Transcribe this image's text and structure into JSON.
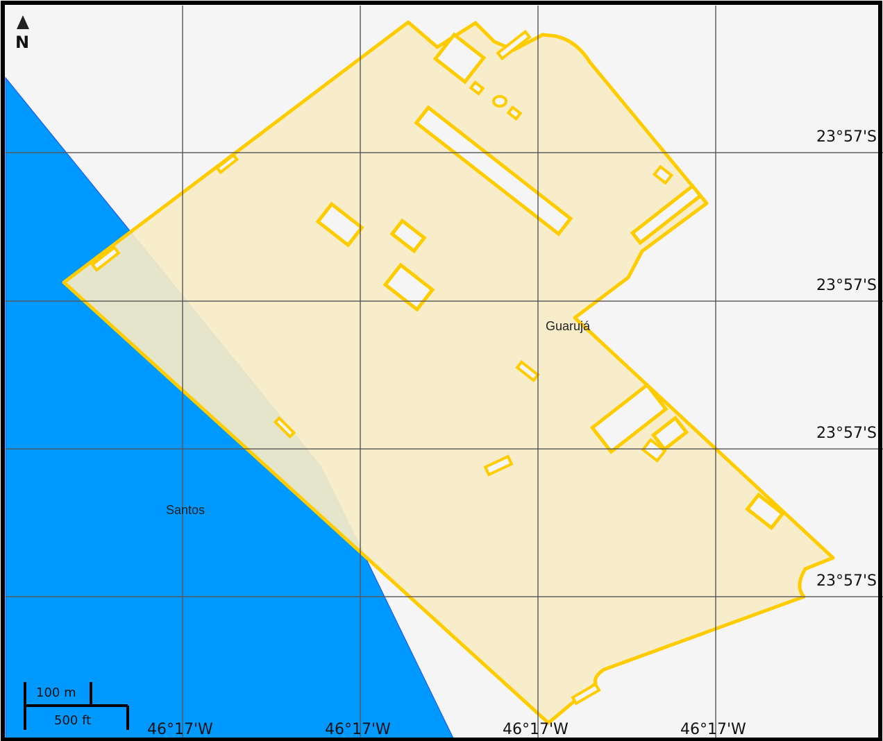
{
  "map": {
    "colors": {
      "land": "#f5f5f5",
      "water": "#0099ff",
      "area_fill": "#f7ecc6",
      "area_stroke": "#ffcc00",
      "grid": "#555555",
      "frame": "#000000"
    },
    "north_arrow": {
      "label": "N",
      "icon": "north-arrow-icon"
    },
    "places": {
      "guaruja": "Guarujá",
      "santos": "Santos"
    },
    "latitude_labels": [
      "23°57'S",
      "23°57'S",
      "23°57'S",
      "23°57'S"
    ],
    "longitude_labels": [
      "46°17'W",
      "46°17'W",
      "46°17'W",
      "46°17'W"
    ],
    "scale_bar": {
      "metric_label": "100 m",
      "imperial_label": "500 ft"
    }
  }
}
